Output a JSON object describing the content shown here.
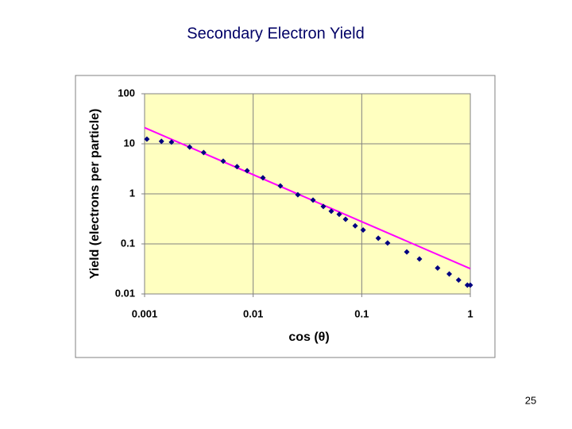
{
  "chart_data": {
    "type": "scatter",
    "title": "Secondary Electron Yield",
    "x_label": "cos (θ)",
    "y_label": "Yield (electrons per particle)",
    "xlog": true,
    "ylog": true,
    "grid": true,
    "background": "#ffffc0",
    "xlim": [
      0.001,
      1
    ],
    "xticks": [
      0.001,
      0.01,
      0.1,
      1
    ],
    "ylim": [
      0.01,
      100
    ],
    "yticks": [
      0.01,
      0.1,
      1,
      10,
      100
    ],
    "series": [
      {
        "mode": "markers",
        "color": "#000080",
        "x": [
          0.00105,
          0.00143,
          0.00177,
          0.0026,
          0.0035,
          0.0053,
          0.0071,
          0.0088,
          0.0123,
          0.0178,
          0.0258,
          0.0356,
          0.0443,
          0.0524,
          0.062,
          0.071,
          0.087,
          0.103,
          0.142,
          0.173,
          0.26,
          0.34,
          0.5,
          0.64,
          0.78,
          0.94,
          1.0
        ],
        "values": [
          12.4,
          11.2,
          10.8,
          8.6,
          6.7,
          4.5,
          3.5,
          2.9,
          2.1,
          1.44,
          0.96,
          0.75,
          0.56,
          0.45,
          0.39,
          0.31,
          0.23,
          0.19,
          0.13,
          0.104,
          0.069,
          0.05,
          0.033,
          0.025,
          0.019,
          0.015,
          0.015
        ]
      },
      {
        "mode": "line",
        "color": "#ff00ff",
        "x": [
          0.001,
          1
        ],
        "values": [
          21,
          0.032
        ]
      }
    ]
  },
  "slide_number": 25
}
